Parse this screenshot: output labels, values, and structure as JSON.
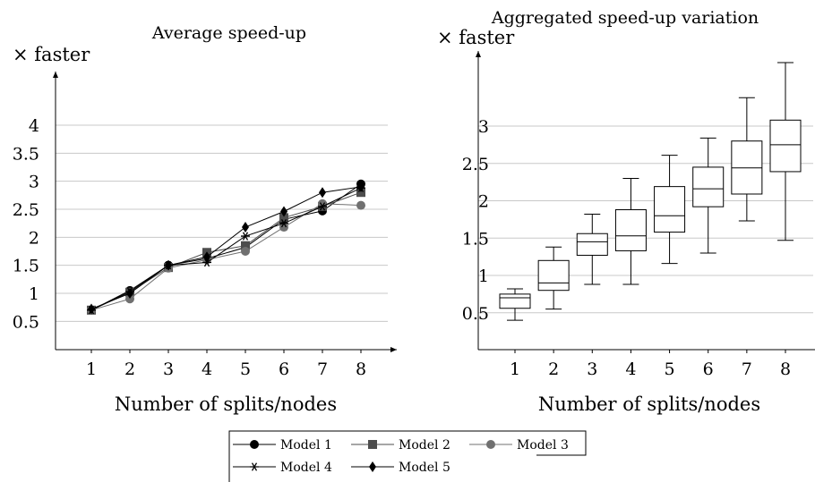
{
  "chart_data": [
    {
      "type": "line",
      "title": "Average speed-up",
      "ylabel": "× faster",
      "xlabel": "Number of splits/nodes",
      "x": [
        1,
        2,
        3,
        4,
        5,
        6,
        7,
        8
      ],
      "yticks": [
        "0.5",
        "1",
        "1.5",
        "2",
        "2.5",
        "3",
        "3.5",
        "4"
      ],
      "grid": true,
      "legend_position": "bottom-center",
      "series": [
        {
          "name": "Model 1",
          "marker": "circle",
          "color": "#000000",
          "values": [
            0.7,
            1.05,
            1.5,
            1.62,
            1.82,
            2.32,
            2.47,
            2.95
          ]
        },
        {
          "name": "Model 2",
          "marker": "square",
          "color": "#4d4d4d",
          "values": [
            0.7,
            1.02,
            1.46,
            1.73,
            1.85,
            2.35,
            2.55,
            2.8
          ]
        },
        {
          "name": "Model 3",
          "marker": "circle",
          "color": "#707070",
          "values": [
            0.7,
            0.9,
            1.45,
            1.6,
            1.75,
            2.18,
            2.6,
            2.57
          ]
        },
        {
          "name": "Model 4",
          "marker": "star",
          "color": "#000000",
          "values": [
            0.7,
            1.03,
            1.5,
            1.55,
            2.02,
            2.25,
            2.55,
            2.88
          ]
        },
        {
          "name": "Model 5",
          "marker": "diamond",
          "color": "#000000",
          "values": [
            0.72,
            1.0,
            1.5,
            1.65,
            2.18,
            2.46,
            2.8,
            2.9
          ]
        }
      ]
    },
    {
      "type": "box",
      "title": "Aggregated speed-up variation",
      "ylabel": "× faster",
      "xlabel": "Number of splits/nodes",
      "yticks": [
        "0.5",
        "1",
        "1.5",
        "2",
        "2.5",
        "3"
      ],
      "grid": true,
      "boxes": [
        {
          "x": 1,
          "min": 0.4,
          "q1": 0.56,
          "median": 0.7,
          "q3": 0.75,
          "max": 0.82
        },
        {
          "x": 2,
          "min": 0.55,
          "q1": 0.8,
          "median": 0.9,
          "q3": 1.2,
          "max": 1.38
        },
        {
          "x": 3,
          "min": 0.88,
          "q1": 1.27,
          "median": 1.45,
          "q3": 1.56,
          "max": 1.82
        },
        {
          "x": 4,
          "min": 0.88,
          "q1": 1.33,
          "median": 1.53,
          "q3": 1.88,
          "max": 2.3
        },
        {
          "x": 5,
          "min": 1.16,
          "q1": 1.58,
          "median": 1.8,
          "q3": 2.19,
          "max": 2.61
        },
        {
          "x": 6,
          "min": 1.3,
          "q1": 1.92,
          "median": 2.16,
          "q3": 2.45,
          "max": 2.84
        },
        {
          "x": 7,
          "min": 1.73,
          "q1": 2.09,
          "median": 2.44,
          "q3": 2.8,
          "max": 3.38
        },
        {
          "x": 8,
          "min": 1.47,
          "q1": 2.39,
          "median": 2.75,
          "q3": 3.08,
          "max": 3.85
        }
      ]
    }
  ]
}
